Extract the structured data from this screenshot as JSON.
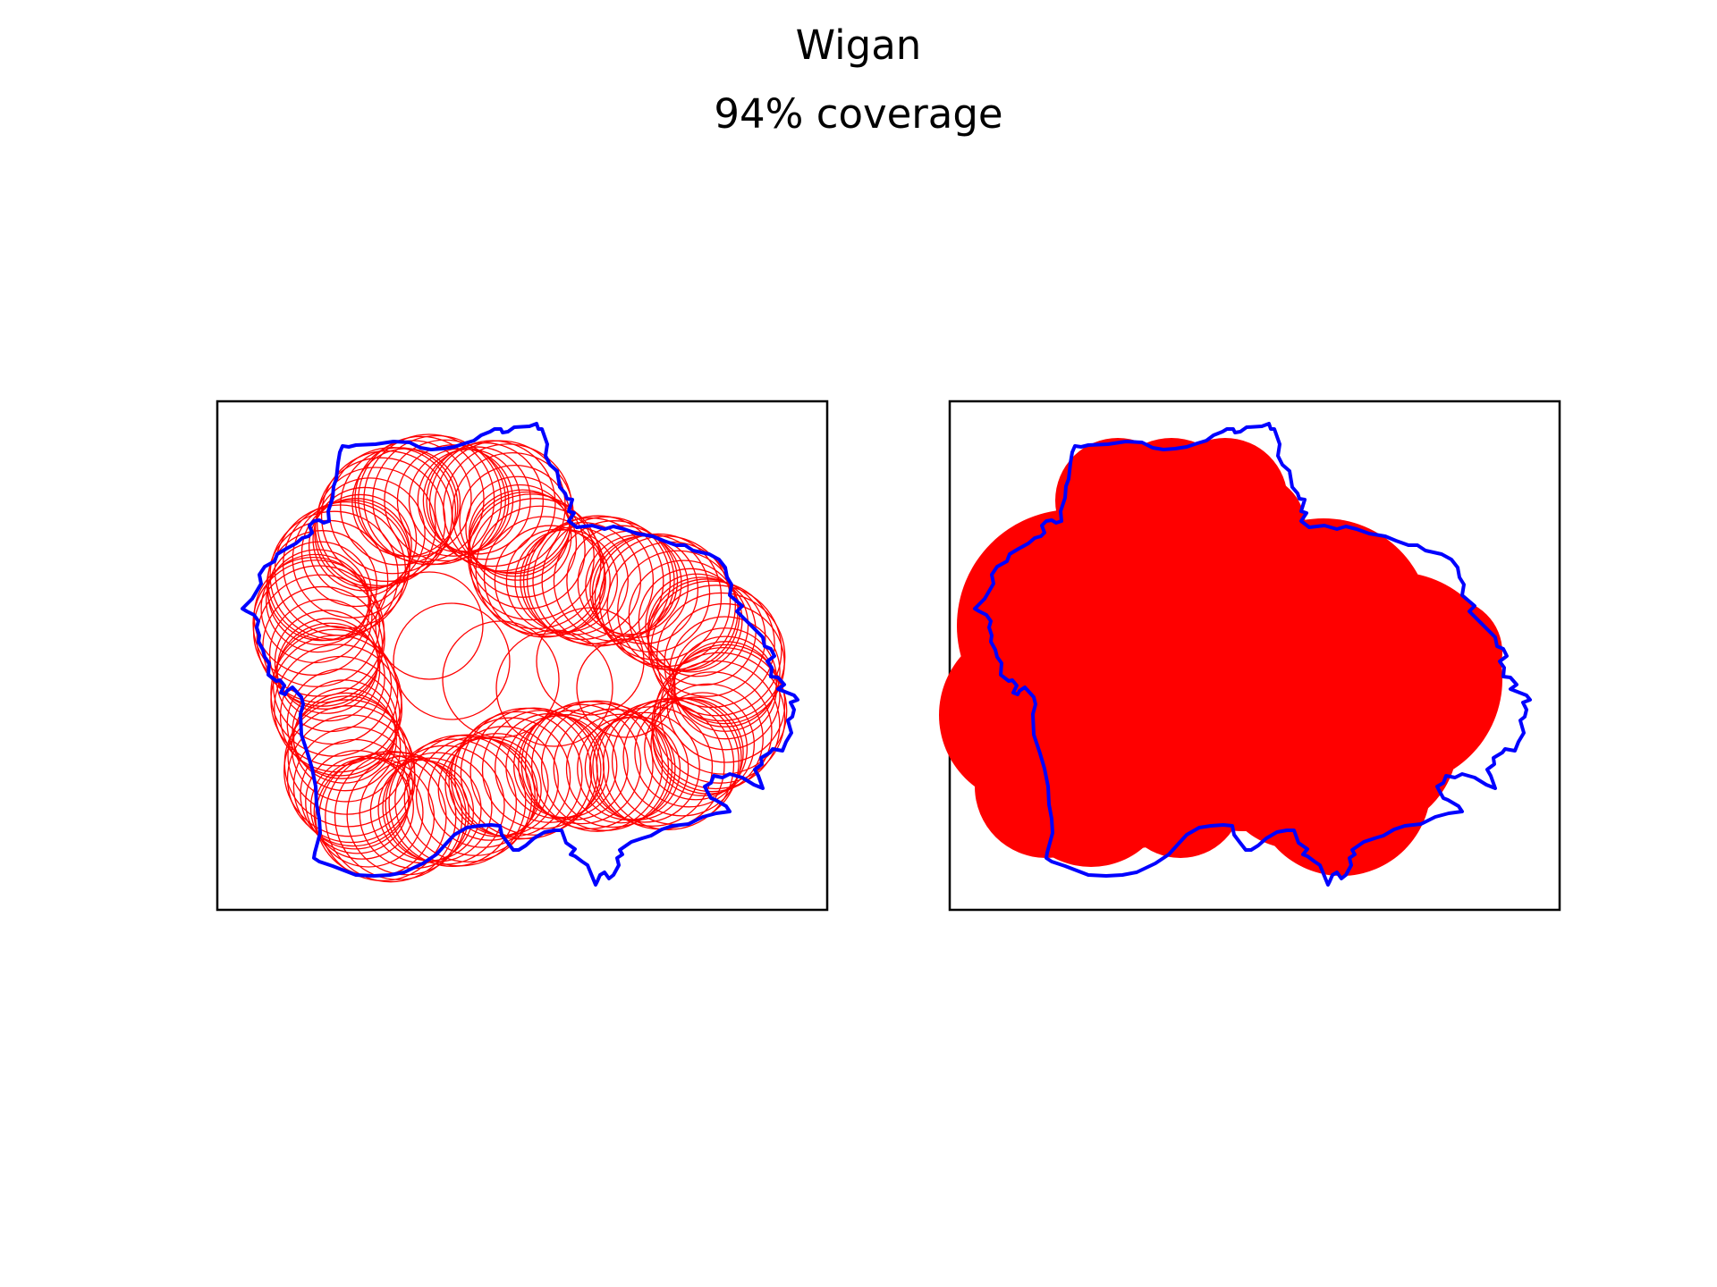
{
  "figure": {
    "title": "Wigan",
    "subtitle": "94% coverage"
  },
  "colors": {
    "boundary": "#0000ff",
    "coverage": "#ff0000",
    "frame": "#000000",
    "background": "#ffffff"
  },
  "chart_data": [
    {
      "type": "map",
      "panel": "left",
      "style": "outlined circles",
      "axes_visible": false,
      "description_of_marks": [
        "boundary outline",
        "coverage circles (outline)"
      ]
    },
    {
      "type": "map",
      "panel": "right",
      "style": "filled union of circles",
      "axes_visible": false,
      "description_of_marks": [
        "boundary outline",
        "coverage area (filled)"
      ]
    }
  ]
}
